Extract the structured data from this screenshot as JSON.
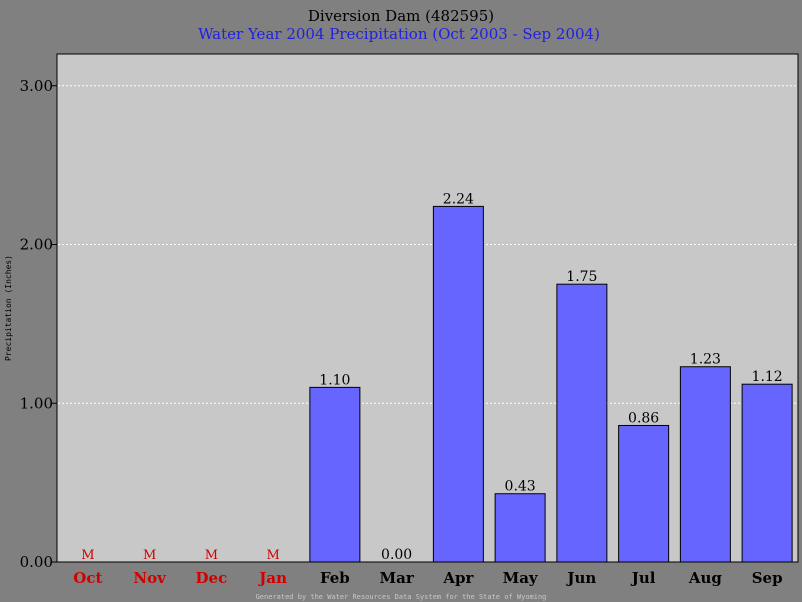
{
  "chart_data": {
    "type": "bar",
    "title": "Diversion Dam (482595)",
    "subtitle": "Water Year 2004 Precipitation (Oct 2003 - Sep 2004)",
    "ylabel": "Precipitation (Inches)",
    "xlabel": "",
    "ylim": [
      0,
      3.2
    ],
    "yticks": [
      "0.00",
      "1.00",
      "2.00",
      "3.00"
    ],
    "ytick_values": [
      0,
      1,
      2,
      3
    ],
    "grid": true,
    "categories": [
      "Oct",
      "Nov",
      "Dec",
      "Jan",
      "Feb",
      "Mar",
      "Apr",
      "May",
      "Jun",
      "Jul",
      "Aug",
      "Sep"
    ],
    "values": [
      null,
      null,
      null,
      null,
      1.1,
      0.0,
      2.24,
      0.43,
      1.75,
      0.86,
      1.23,
      1.12
    ],
    "value_labels": [
      "M",
      "M",
      "M",
      "M",
      "1.10",
      "0.00",
      "2.24",
      "0.43",
      "1.75",
      "0.86",
      "1.23",
      "1.12"
    ],
    "missing_marker": "M",
    "colors": {
      "bar": "#6666ff",
      "missing": "#d00000",
      "plot_bg": "#c8c8c8",
      "page_bg": "#808080"
    }
  },
  "footer": "Generated by the Water Resources Data System for the State of Wyoming"
}
